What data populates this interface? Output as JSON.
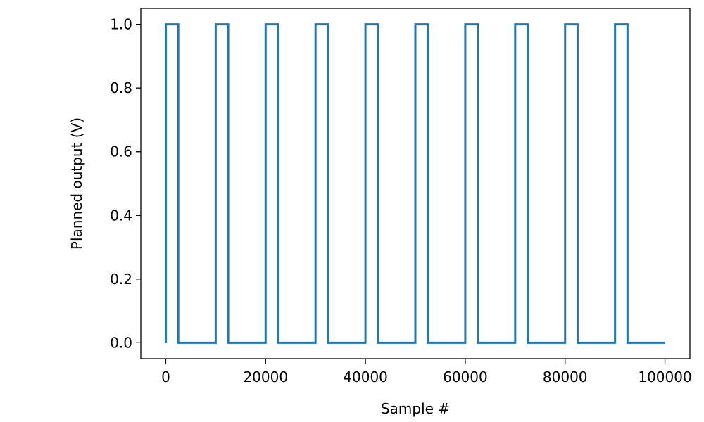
{
  "chart_data": {
    "type": "line",
    "title": "",
    "xlabel": "Sample #",
    "ylabel": "Planned output (V)",
    "xlim": [
      -5000,
      105000
    ],
    "ylim": [
      -0.05,
      1.05
    ],
    "x_ticks": [
      0,
      20000,
      40000,
      60000,
      80000,
      100000
    ],
    "x_tick_labels": [
      "0",
      "20000",
      "40000",
      "60000",
      "80000",
      "100000"
    ],
    "y_ticks": [
      0.0,
      0.2,
      0.4,
      0.6,
      0.8,
      1.0
    ],
    "y_tick_labels": [
      "0.0",
      "0.2",
      "0.4",
      "0.6",
      "0.8",
      "1.0"
    ],
    "grid": false,
    "legend": "none",
    "line_color": "#1f77b4",
    "series": [
      {
        "x": [
          0,
          0,
          2500,
          2500,
          10000,
          10000,
          12500,
          12500,
          20000,
          20000,
          22500,
          22500,
          30000,
          30000,
          32500,
          32500,
          40000,
          40000,
          42500,
          42500,
          50000,
          50000,
          52500,
          52500,
          60000,
          60000,
          62500,
          62500,
          70000,
          70000,
          72500,
          72500,
          80000,
          80000,
          82500,
          82500,
          90000,
          90000,
          92500,
          92500,
          100000
        ],
        "y": [
          0,
          1,
          1,
          0,
          0,
          1,
          1,
          0,
          0,
          1,
          1,
          0,
          0,
          1,
          1,
          0,
          0,
          1,
          1,
          0,
          0,
          1,
          1,
          0,
          0,
          1,
          1,
          0,
          0,
          1,
          1,
          0,
          0,
          1,
          1,
          0,
          0,
          1,
          1,
          0,
          0
        ]
      }
    ]
  }
}
